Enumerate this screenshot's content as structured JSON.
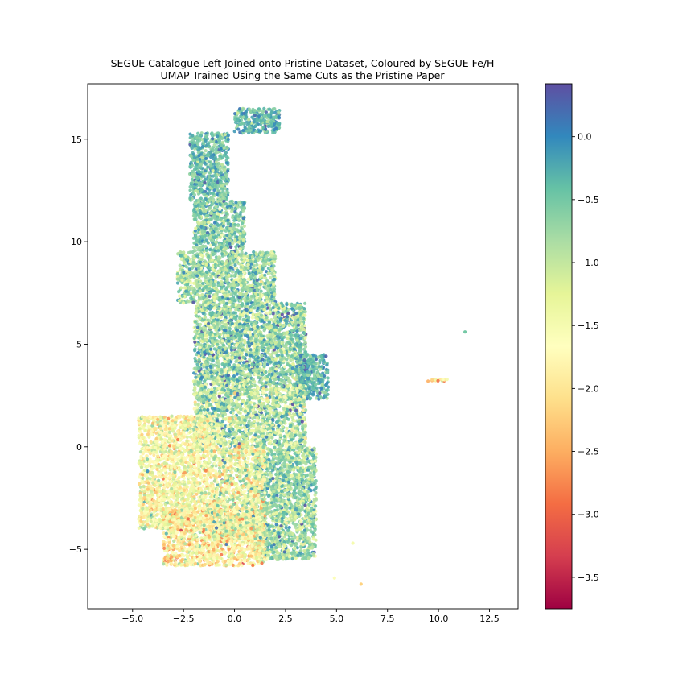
{
  "chart_data": {
    "type": "scatter",
    "title_line1": "SEGUE Catalogue Left Joined onto Pristine Dataset, Coloured by SEGUE Fe/H",
    "title_line2": "UMAP Trained Using the Same Cuts as the Pristine Paper",
    "xlabel": "",
    "ylabel": "",
    "xlim": [
      -7.2,
      13.9
    ],
    "ylim": [
      -7.9,
      17.7
    ],
    "x_ticks": [
      -5.0,
      -2.5,
      0.0,
      2.5,
      5.0,
      7.5,
      10.0,
      12.5
    ],
    "x_tick_labels": [
      "−5.0",
      "−2.5",
      "0.0",
      "2.5",
      "5.0",
      "7.5",
      "10.0",
      "12.5"
    ],
    "y_ticks": [
      -5,
      0,
      5,
      10,
      15
    ],
    "y_tick_labels": [
      "−5",
      "0",
      "5",
      "10",
      "15"
    ],
    "grid": false,
    "legend": "none",
    "colorbar": {
      "label": "",
      "range": [
        -3.75,
        0.42
      ],
      "ticks": [
        0.0,
        -0.5,
        -1.0,
        -1.5,
        -2.0,
        -2.5,
        -3.0,
        -3.5
      ],
      "tick_labels": [
        "0.0",
        "−0.5",
        "−1.0",
        "−1.5",
        "−2.0",
        "−2.5",
        "−3.0",
        "−3.5"
      ],
      "colormap": "Spectral",
      "colormap_stops": [
        "#9e0142",
        "#d53e4f",
        "#f46d43",
        "#fdae61",
        "#fee08b",
        "#ffffbf",
        "#e6f598",
        "#abdda4",
        "#66c2a5",
        "#3288bd",
        "#5e4fa2"
      ]
    },
    "regions": [
      {
        "x": [
          0.0,
          2.2
        ],
        "y": [
          15.3,
          16.5
        ],
        "feh_mean": -0.35,
        "feh_sd": 0.3
      },
      {
        "x": [
          -2.2,
          -0.3
        ],
        "y": [
          12.0,
          15.3
        ],
        "feh_mean": -0.45,
        "feh_sd": 0.3
      },
      {
        "x": [
          -2.0,
          0.5
        ],
        "y": [
          9.5,
          12.0
        ],
        "feh_mean": -0.6,
        "feh_sd": 0.35
      },
      {
        "x": [
          -2.8,
          2.0
        ],
        "y": [
          7.0,
          9.5
        ],
        "feh_mean": -0.75,
        "feh_sd": 0.4
      },
      {
        "x": [
          -2.0,
          3.5
        ],
        "y": [
          3.0,
          7.0
        ],
        "feh_mean": -0.7,
        "feh_sd": 0.45
      },
      {
        "x": [
          3.0,
          4.6
        ],
        "y": [
          2.3,
          4.5
        ],
        "feh_mean": -0.35,
        "feh_sd": 0.3
      },
      {
        "x": [
          -2.0,
          3.5
        ],
        "y": [
          0.0,
          3.0
        ],
        "feh_mean": -0.95,
        "feh_sd": 0.5
      },
      {
        "x": [
          1.0,
          4.0
        ],
        "y": [
          -5.5,
          0.0
        ],
        "feh_mean": -0.75,
        "feh_sd": 0.4
      },
      {
        "x": [
          -4.7,
          -1.0
        ],
        "y": [
          -4.0,
          1.5
        ],
        "feh_mean": -1.6,
        "feh_sd": 0.45
      },
      {
        "x": [
          -3.5,
          1.5
        ],
        "y": [
          -5.8,
          -3.0
        ],
        "feh_mean": -1.8,
        "feh_sd": 0.5
      },
      {
        "x": [
          -1.0,
          1.5
        ],
        "y": [
          -4.5,
          0.0
        ],
        "feh_mean": -1.4,
        "feh_sd": 0.55
      },
      {
        "x": [
          9.4,
          10.5
        ],
        "y": [
          3.2,
          3.3
        ],
        "feh_mean": -1.9,
        "feh_sd": 0.6
      }
    ],
    "isolated_points": [
      {
        "x": 11.3,
        "y": 5.6,
        "feh": -0.5
      },
      {
        "x": 6.2,
        "y": -6.7,
        "feh": -2.2
      },
      {
        "x": 5.8,
        "y": -4.7,
        "feh": -1.5
      },
      {
        "x": 4.9,
        "y": -6.4,
        "feh": -1.6
      }
    ]
  }
}
